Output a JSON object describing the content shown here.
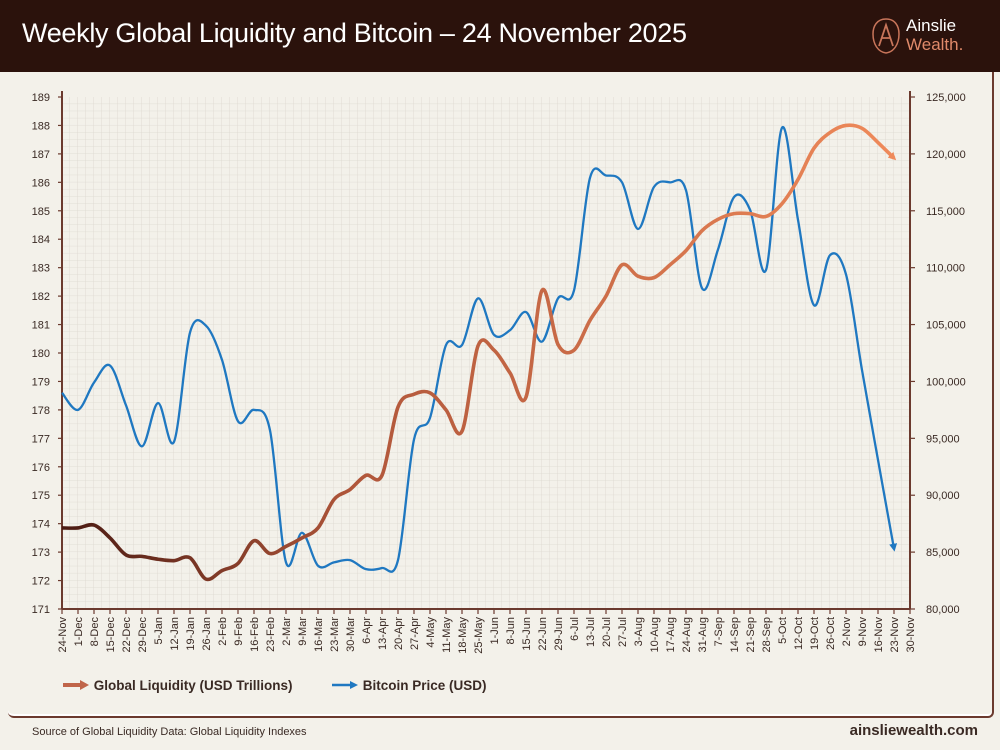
{
  "header": {
    "title": "Weekly Global Liquidity and Bitcoin – 24 November 2025",
    "logo_line1": "Ainslie",
    "logo_line2": "Wealth."
  },
  "footer": {
    "source": "Source of Global Liquidity Data: Global Liquidity Indexes",
    "site": "ainsliewealth.com"
  },
  "colors": {
    "liquidity_start": "#4a1a12",
    "liquidity_mid": "#b0563a",
    "liquidity_end": "#ef8a5a",
    "bitcoin": "#1f78c1",
    "axis": "#6b3a2e"
  },
  "chart_data": {
    "type": "line",
    "title": "Weekly Global Liquidity and Bitcoin – 24 November 2025",
    "x_tick_labels": [
      "24-Nov",
      "1-Dec",
      "8-Dec",
      "15-Dec",
      "22-Dec",
      "29-Dec",
      "5-Jan",
      "12-Jan",
      "19-Jan",
      "26-Jan",
      "2-Feb",
      "9-Feb",
      "16-Feb",
      "23-Feb",
      "2-Mar",
      "9-Mar",
      "16-Mar",
      "23-Mar",
      "30-Mar",
      "6-Apr",
      "13-Apr",
      "20-Apr",
      "27-Apr",
      "4-May",
      "11-May",
      "18-May",
      "25-May",
      "1-Jun",
      "8-Jun",
      "15-Jun",
      "22-Jun",
      "29-Jun",
      "6-Jul",
      "13-Jul",
      "20-Jul",
      "27-Jul",
      "3-Aug",
      "10-Aug",
      "17-Aug",
      "24-Aug",
      "31-Aug",
      "7-Sep",
      "14-Sep",
      "21-Sep",
      "28-Sep",
      "5-Oct",
      "12-Oct",
      "19-Oct",
      "26-Oct",
      "2-Nov",
      "9-Nov",
      "16-Nov",
      "23-Nov",
      "30-Nov"
    ],
    "y_left": {
      "min": 171,
      "max": 189,
      "ticks": [
        "171",
        "172",
        "173",
        "174",
        "175",
        "176",
        "177",
        "178",
        "179",
        "180",
        "181",
        "182",
        "183",
        "184",
        "185",
        "186",
        "187",
        "188",
        "189"
      ]
    },
    "y_right": {
      "min": 80000,
      "max": 125000,
      "ticks": [
        "80,000",
        "85,000",
        "90,000",
        "95,000",
        "100,000",
        "105,000",
        "110,000",
        "115,000",
        "120,000",
        "125,000"
      ]
    },
    "grid": true,
    "legend_position": "bottom-left",
    "series": [
      {
        "name": "Global Liquidity (USD Trillions)",
        "axis": "left",
        "values": [
          173.85,
          173.85,
          173.95,
          173.5,
          172.9,
          172.85,
          172.75,
          172.7,
          172.8,
          172.05,
          172.35,
          172.6,
          173.4,
          172.95,
          173.2,
          173.5,
          173.85,
          174.85,
          175.2,
          175.7,
          175.7,
          178.1,
          178.55,
          178.6,
          178.0,
          177.25,
          180.25,
          180.1,
          179.3,
          178.45,
          182.2,
          180.3,
          180.1,
          181.15,
          182.0,
          183.1,
          182.7,
          182.65,
          183.1,
          183.6,
          184.3,
          184.7,
          184.9,
          184.9,
          184.8,
          185.25,
          186.1,
          187.2,
          187.75,
          188.0,
          187.9,
          187.4,
          186.85
        ]
      },
      {
        "name": "Bitcoin Price (USD)",
        "axis": "right",
        "values": [
          99000,
          97500,
          99900,
          101400,
          97900,
          94300,
          98100,
          94700,
          104300,
          104900,
          101900,
          96500,
          97500,
          95700,
          84100,
          86700,
          83800,
          84100,
          84300,
          83500,
          83600,
          84300,
          94900,
          96800,
          103200,
          103200,
          107300,
          104100,
          104500,
          106100,
          103500,
          107300,
          108000,
          117900,
          118100,
          117500,
          113400,
          117100,
          117500,
          116800,
          108200,
          111600,
          116200,
          115100,
          109800,
          122300,
          114200,
          106700,
          111100,
          109400,
          101000,
          93100,
          85300
        ]
      }
    ]
  }
}
